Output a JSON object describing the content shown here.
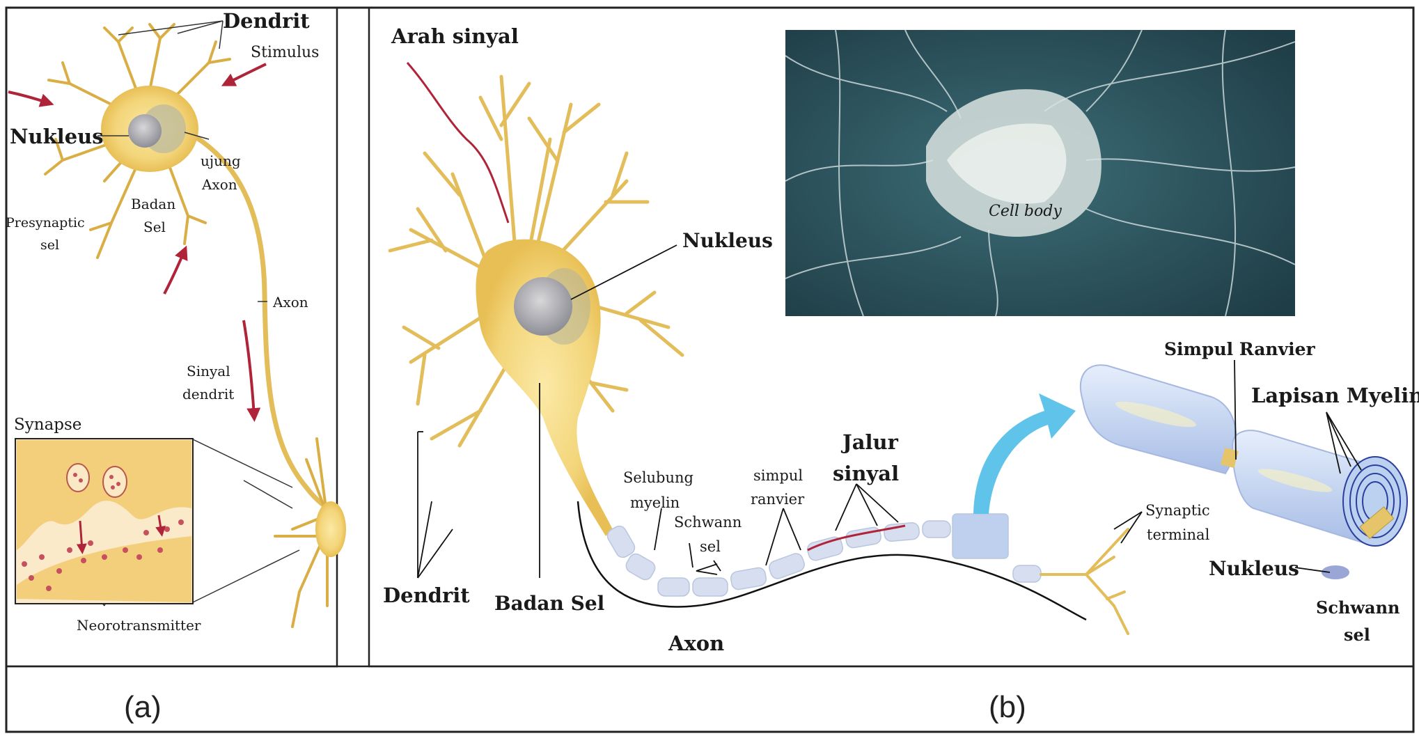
{
  "panel_a": {
    "caption": "(a)",
    "labels": {
      "dendrit": "Dendrit",
      "stimulus": "Stimulus",
      "nukleus": "Nukleus",
      "ujung_axon_1": "ujung",
      "ujung_axon_2": "Axon",
      "badan_sel_1": "Badan",
      "badan_sel_2": "Sel",
      "presynaptic_1": "Presynaptic",
      "presynaptic_2": "sel",
      "axon": "Axon",
      "sinyal_dendrit_1": "Sinyal",
      "sinyal_dendrit_2": "dendrit",
      "synapse": "Synapse",
      "neurotransmitter": "Neorotransmitter"
    }
  },
  "panel_b": {
    "caption": "(b)",
    "labels": {
      "arah_sinyal": "Arah sinyal",
      "nukleus": "Nukleus",
      "dendrit": "Dendrit",
      "badan_sel": "Badan Sel",
      "axon": "Axon",
      "selubung_1": "Selubung",
      "selubung_2": "myelin",
      "schwann_1": "Schwann",
      "schwann_2": "sel",
      "simpul_1": "simpul",
      "simpul_2": "ranvier",
      "jalur_1": "Jalur",
      "jalur_2": "sinyal",
      "synaptic_1": "Synaptic",
      "synaptic_2": "terminal",
      "simpul_ranvier": "Simpul Ranvier",
      "lapisan_myelin": "Lapisan Myelin",
      "nukleus_2": "Nukleus",
      "schwann_sel_1": "Schwann",
      "schwann_sel_2": "sel",
      "photo_label": "Cell body"
    }
  },
  "colors": {
    "neuron_fill": "#f3d57a",
    "neuron_stroke": "#d9a93a",
    "arrow_red": "#b0243a",
    "photo_bg": "#2e5a64",
    "myelin": "#c9d8f2",
    "pointer_blue": "#5fc3ea"
  }
}
